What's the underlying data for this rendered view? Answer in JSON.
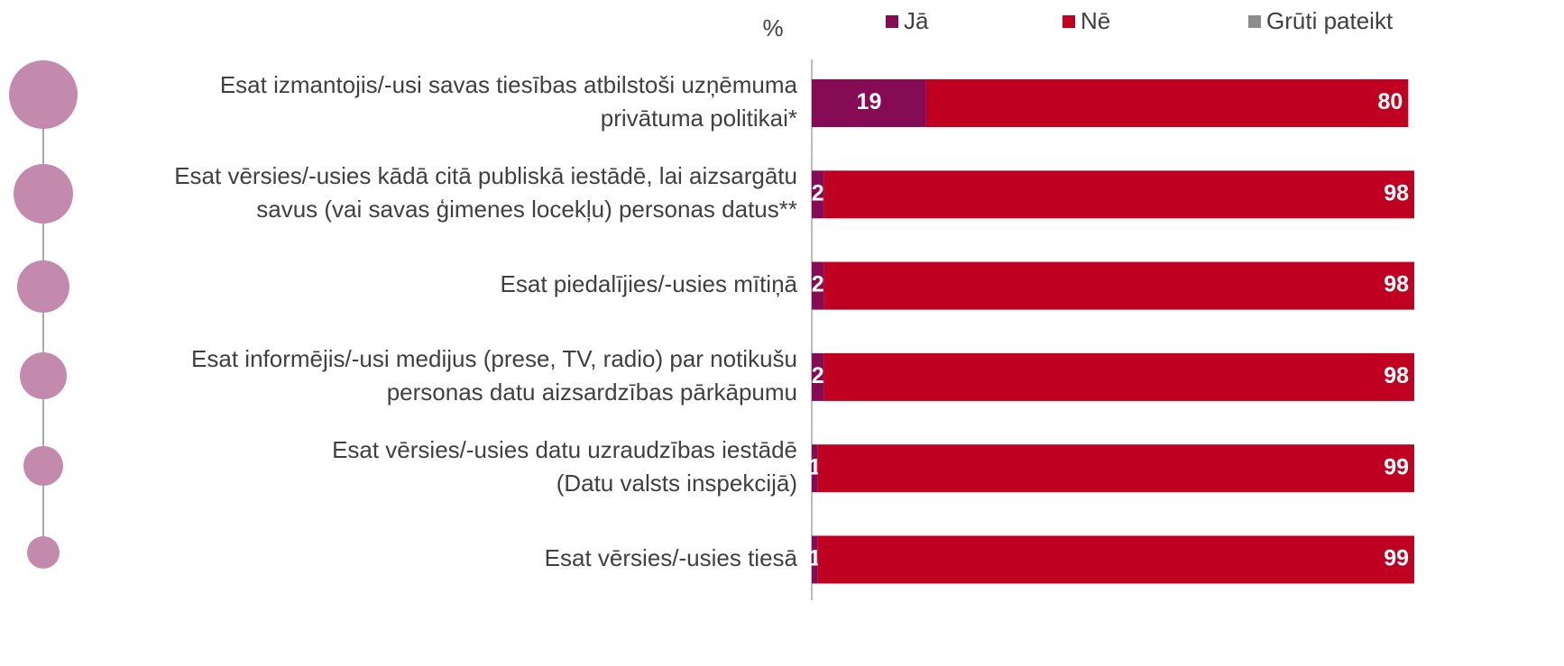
{
  "chart_data": {
    "type": "stacked_barh",
    "unit_label": "%",
    "categories": [
      [
        "Esat izmantojis/-usi savas tiesības atbilstoši uzņēmuma",
        "privātuma politikai*"
      ],
      [
        "Esat vērsies/-usies kādā citā publiskā iestādē, lai aizsargātu",
        "savus (vai savas ģimenes locekļu) personas datus**"
      ],
      [
        "Esat piedalījies/-usies mītiņā"
      ],
      [
        "Esat informējis/-usi medijus (prese, TV, radio) par notikušu",
        "personas datu aizsardzības pārkāpumu"
      ],
      [
        "Esat vērsies/-usies datu uzraudzības iestādē",
        "(Datu valsts inspekcijā)"
      ],
      [
        "Esat vērsies/-usies tiesā"
      ]
    ],
    "series": [
      {
        "name": "Jā",
        "color": "#850b55",
        "values": [
          19,
          2,
          2,
          2,
          1,
          1
        ]
      },
      {
        "name": "Nē",
        "color": "#bf0020",
        "values": [
          80,
          98,
          98,
          98,
          99,
          99
        ]
      },
      {
        "name": "Grūti pateikt",
        "color": "#8c8c8c",
        "values": [
          null,
          null,
          null,
          null,
          null,
          null
        ]
      }
    ],
    "xlim": [
      0,
      100
    ],
    "legend": "top"
  }
}
